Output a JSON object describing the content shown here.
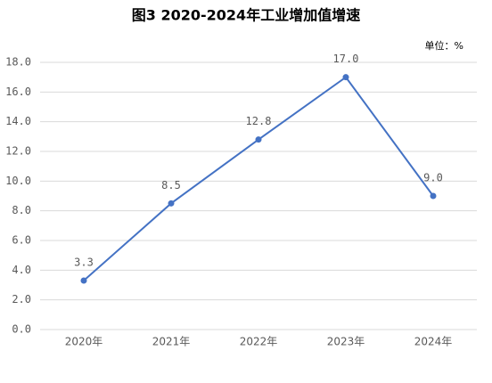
{
  "chart_data": {
    "type": "line",
    "title": "图3  2020-2024年工业增加值增速",
    "unit": "单位：%",
    "categories": [
      "2020年",
      "2021年",
      "2022年",
      "2023年",
      "2024年"
    ],
    "series": [
      {
        "name": "工业增加值增速",
        "color": "#4472c4",
        "values": [
          3.3,
          8.5,
          12.8,
          17.0,
          9.0
        ],
        "value_labels": [
          "3.3",
          "8.5",
          "12.8",
          "17.0",
          "9.0"
        ]
      }
    ],
    "ylim": [
      0,
      18
    ],
    "yticks": [
      {
        "value": 0,
        "label": "0.0"
      },
      {
        "value": 2,
        "label": "2.0"
      },
      {
        "value": 4,
        "label": "4.0"
      },
      {
        "value": 6,
        "label": "6.0"
      },
      {
        "value": 8,
        "label": "8.0"
      },
      {
        "value": 10,
        "label": "10.0"
      },
      {
        "value": 12,
        "label": "12.0"
      },
      {
        "value": 14,
        "label": "14.0"
      },
      {
        "value": 16,
        "label": "16.0"
      },
      {
        "value": 18,
        "label": "18.0"
      }
    ],
    "grid": true
  }
}
